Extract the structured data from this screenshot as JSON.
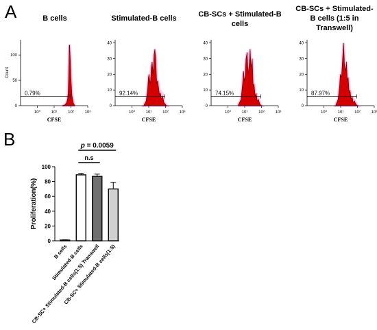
{
  "panels": {
    "a_label": "A",
    "b_label": "B"
  },
  "chart_data": [
    {
      "type": "area",
      "title": "B cells",
      "xlabel": "CFSE",
      "ylabel": "Count",
      "x_scale": "log",
      "xlim": [
        0.1,
        1000
      ],
      "x_ticks": [
        "10⁰",
        "10¹",
        "10²",
        "10³"
      ],
      "y_ticks": [
        "0",
        "50",
        "100"
      ],
      "ylim": [
        0,
        130
      ],
      "gate_label": "0.79%",
      "color": "#d40000",
      "x": [
        30,
        45,
        55,
        62,
        68,
        72,
        76,
        80,
        84,
        90,
        100,
        115,
        140,
        170
      ],
      "y": [
        0,
        2,
        6,
        12,
        25,
        50,
        85,
        118,
        120,
        95,
        55,
        20,
        5,
        0
      ]
    },
    {
      "type": "area",
      "title": "Stimulated-B cells",
      "xlabel": "CFSE",
      "ylabel": "",
      "x_scale": "log",
      "xlim": [
        0.1,
        1000
      ],
      "x_ticks": [
        "10⁰",
        "10¹",
        "10²",
        "10³"
      ],
      "y_ticks": [
        "0",
        "10",
        "20",
        "30",
        "40"
      ],
      "ylim": [
        0,
        42
      ],
      "gate_label": "92.14%",
      "color": "#d40000",
      "x": [
        5,
        7,
        8.5,
        9.5,
        10.5,
        11.5,
        12.5,
        14,
        16,
        18.5,
        20.5,
        23,
        26,
        30,
        34,
        38,
        44,
        50,
        58,
        68,
        80,
        95,
        115
      ],
      "y": [
        0,
        3,
        10,
        18,
        20,
        16,
        14,
        24,
        28,
        20,
        32,
        36,
        30,
        14,
        16,
        12,
        7,
        8,
        4,
        6,
        2,
        1,
        0
      ]
    },
    {
      "type": "area",
      "title": "CB-SCs + Stimulated-B cells",
      "xlabel": "CFSE",
      "ylabel": "",
      "x_scale": "log",
      "xlim": [
        0.1,
        1000
      ],
      "x_ticks": [
        "10⁰",
        "10¹",
        "10²",
        "10³"
      ],
      "y_ticks": [
        "0",
        "10",
        "20",
        "30",
        "40"
      ],
      "ylim": [
        0,
        42
      ],
      "gate_label": "74.15%",
      "color": "#d40000",
      "x": [
        4,
        6,
        7.5,
        8.5,
        9.5,
        10.5,
        12,
        14,
        16,
        18.5,
        21,
        24,
        28,
        32,
        36,
        42,
        48,
        56,
        66,
        80,
        100
      ],
      "y": [
        0,
        4,
        14,
        22,
        16,
        18,
        30,
        34,
        20,
        26,
        36,
        24,
        30,
        12,
        14,
        6,
        8,
        3,
        4,
        1,
        0
      ]
    },
    {
      "type": "area",
      "title": "CB-SCs + Stimulated-B cells (1:5 in Transwell)",
      "xlabel": "CFSE",
      "ylabel": "",
      "x_scale": "log",
      "xlim": [
        0.1,
        1000
      ],
      "x_ticks": [
        "10⁰",
        "10¹",
        "10²",
        "10³"
      ],
      "y_ticks": [
        "0",
        "10",
        "20",
        "30",
        "40"
      ],
      "ylim": [
        0,
        42
      ],
      "gate_label": "87.97%",
      "color": "#d40000",
      "x": [
        5,
        7,
        8.5,
        9.5,
        10.5,
        11.5,
        13,
        15,
        17,
        19.5,
        22,
        25,
        28,
        32,
        36,
        42,
        48,
        56,
        66,
        80,
        100
      ],
      "y": [
        0,
        4,
        12,
        20,
        18,
        20,
        30,
        40,
        26,
        22,
        28,
        16,
        18,
        8,
        10,
        4,
        6,
        2,
        3,
        1,
        0
      ]
    },
    {
      "type": "bar",
      "categories": [
        "B cells",
        "Stimulated-B cells",
        "CB-SC+ Stimulated-B cells(1:5) Transwell",
        "CB-SC+ Stimulated-B cells(1:5)"
      ],
      "values": [
        1,
        89,
        87,
        70
      ],
      "errors": [
        0.5,
        2,
        3,
        9
      ],
      "bar_colors": [
        "#000000",
        "#ffffff",
        "#707070",
        "#d0d0d0"
      ],
      "ylabel": "Proliferation(%)",
      "ylim": [
        0,
        100
      ],
      "y_ticks": [
        "0",
        "20",
        "40",
        "60",
        "80",
        "100"
      ],
      "annotations": {
        "ns": "n.s",
        "p_prefix": "p",
        "p_rest": " = 0.0059"
      }
    }
  ]
}
